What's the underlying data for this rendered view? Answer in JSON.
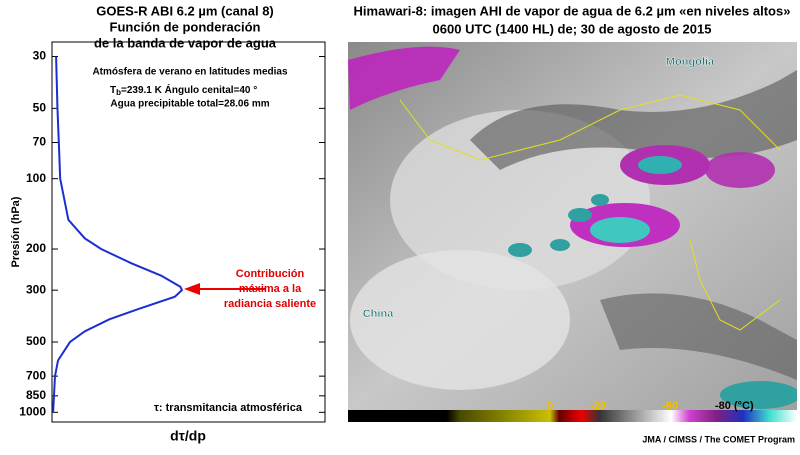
{
  "chart_data": {
    "type": "line",
    "title": [
      "GOES-R ABI 6.2 µm (canal 8)",
      "Función de ponderación",
      "de la banda de vapor de agua"
    ],
    "ylabel": "Presión (hPa)",
    "xlabel": "dτ/dp",
    "yscale": "log",
    "y_inverted": true,
    "grid": false,
    "color": "#1a2fd0",
    "ylim": [
      26,
      1100
    ],
    "yticks": [
      30,
      50,
      70,
      100,
      200,
      300,
      500,
      700,
      850,
      1000
    ],
    "xlim": [
      0,
      1
    ],
    "x": [
      0.015,
      0.02,
      0.025,
      0.03,
      0.06,
      0.12,
      0.18,
      0.29,
      0.4,
      0.47,
      0.476,
      0.45,
      0.32,
      0.21,
      0.12,
      0.066,
      0.022,
      0.011,
      0.004
    ],
    "values": [
      30,
      50,
      70,
      100,
      150,
      180,
      200,
      230,
      260,
      290,
      300,
      320,
      360,
      400,
      450,
      500,
      600,
      700,
      1000
    ],
    "annotations": {
      "profile": "Atmósfera de verano en latitudes medias",
      "tb_symbol": "T",
      "tb_subscript": "b",
      "tb_text": "=239.1 K  Ángulo cenital=40 °",
      "water": "Agua precipitable total=28.06 mm",
      "peak": [
        "Contribución",
        "máxima a la",
        "radiancia saliente"
      ],
      "tau": "τ: transmitancia atmosférica"
    }
  },
  "satellite_image": {
    "title": [
      "Himawari-8: imagen AHI de vapor de agua de 6.2 µm «en niveles altos»",
      "0600 UTC (1400 HL) de; 30 de agosto de 2015"
    ],
    "places": [
      "Mongolia",
      "China"
    ],
    "colorbar_labels": [
      "0",
      "-20",
      "-60",
      "-80 (°C)"
    ],
    "credit": "JMA / CIMSS / The COMET Program"
  }
}
